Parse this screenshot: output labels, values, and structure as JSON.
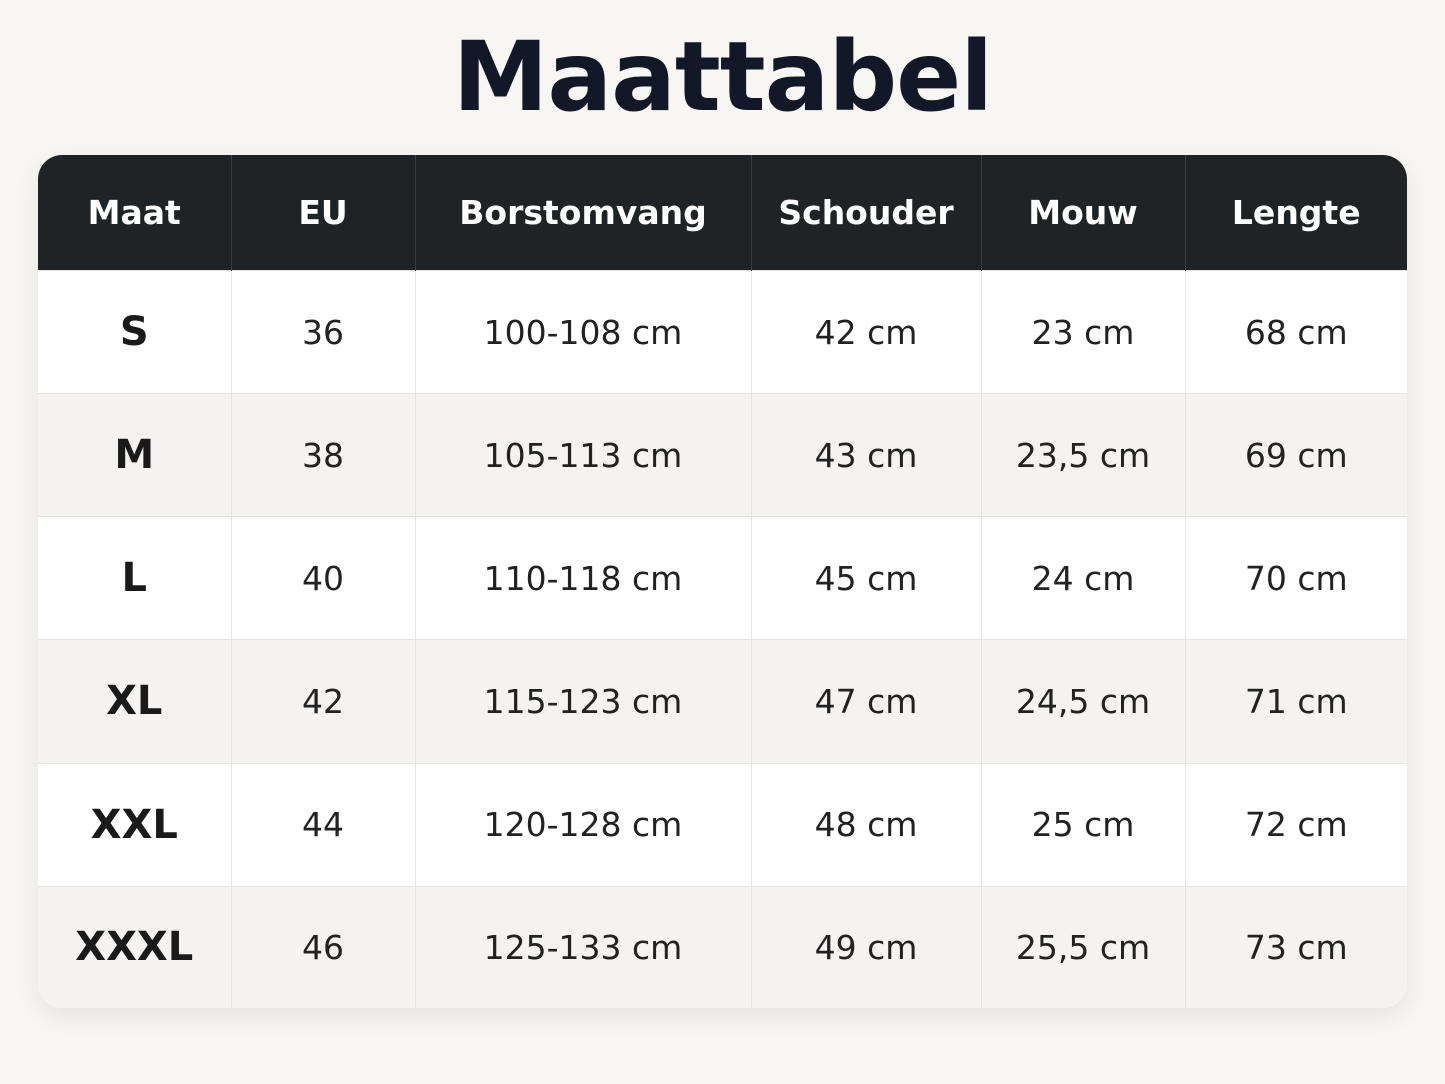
{
  "title": "Maattabel",
  "table": {
    "header": [
      "Maat",
      "EU",
      "Borstomvang",
      "Schouder",
      "Mouw",
      "Lengte"
    ],
    "rows": [
      [
        "S",
        "36",
        "100-108 cm",
        "42 cm",
        "23 cm",
        "68 cm"
      ],
      [
        "M",
        "38",
        "105-113 cm",
        "43 cm",
        "23,5 cm",
        "69 cm"
      ],
      [
        "L",
        "40",
        "110-118 cm",
        "45 cm",
        "24 cm",
        "70 cm"
      ],
      [
        "XL",
        "42",
        "115-123 cm",
        "47 cm",
        "24,5 cm",
        "71 cm"
      ],
      [
        "XXL",
        "44",
        "120-128 cm",
        "48 cm",
        "25 cm",
        "72 cm"
      ],
      [
        "XXXL",
        "46",
        "125-133 cm",
        "49 cm",
        "25,5 cm",
        "73 cm"
      ]
    ]
  }
}
